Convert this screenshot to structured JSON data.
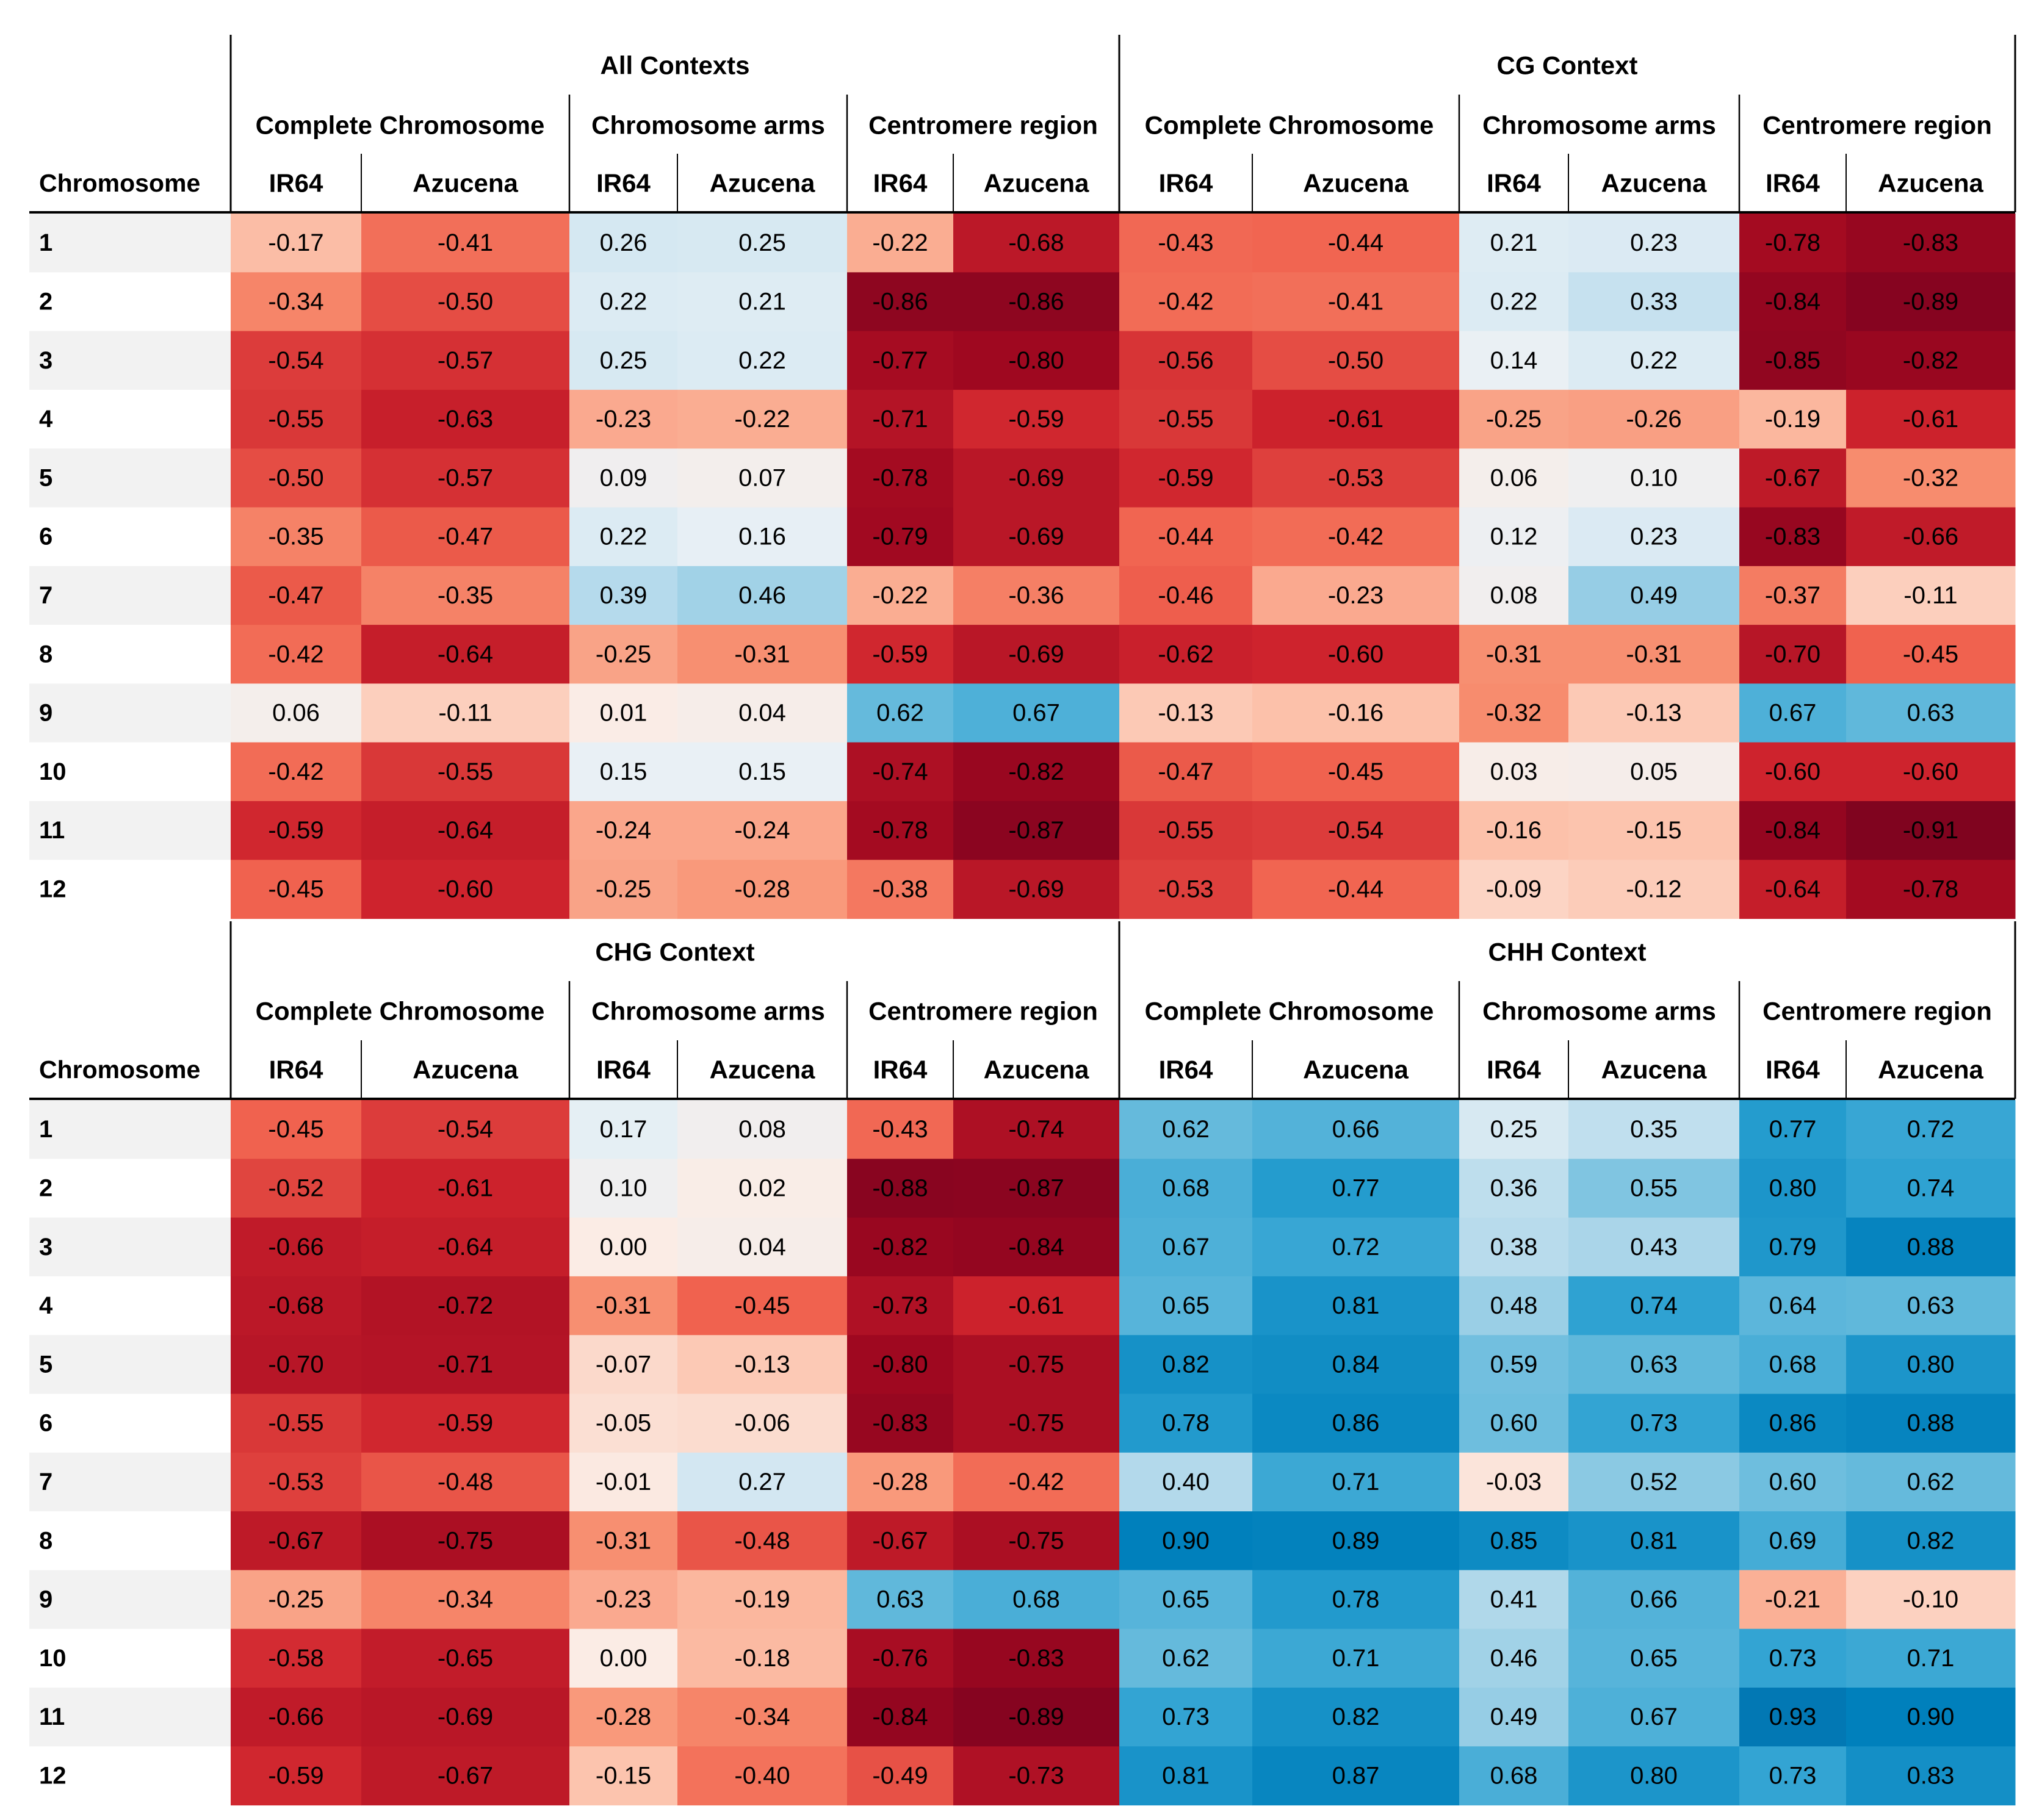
{
  "chart_data": [
    {
      "type": "heatmap",
      "row_header": "Chromosome",
      "rows": [
        "1",
        "2",
        "3",
        "4",
        "5",
        "6",
        "7",
        "8",
        "9",
        "10",
        "11",
        "12"
      ],
      "contexts": [
        {
          "name": "All Contexts",
          "regions": [
            {
              "name": "Complete Chromosome",
              "cols": [
                "IR64",
                "Azucena"
              ]
            },
            {
              "name": "Chromosome arms",
              "cols": [
                "IR64",
                "Azucena"
              ]
            },
            {
              "name": "Centromere region",
              "cols": [
                "IR64",
                "Azucena"
              ]
            }
          ]
        },
        {
          "name": "CG Context",
          "regions": [
            {
              "name": "Complete Chromosome",
              "cols": [
                "IR64",
                "Azucena"
              ]
            },
            {
              "name": "Chromosome arms",
              "cols": [
                "IR64",
                "Azucena"
              ]
            },
            {
              "name": "Centromere region",
              "cols": [
                "IR64",
                "Azucena"
              ]
            }
          ]
        }
      ],
      "values": [
        [
          "-0.17",
          "-0.41",
          "0.26",
          "0.25",
          "-0.22",
          "-0.68",
          "-0.43",
          "-0.44",
          "0.21",
          "0.23",
          "-0.78",
          "-0.83"
        ],
        [
          "-0.34",
          "-0.50",
          "0.22",
          "0.21",
          "-0.86",
          "-0.86",
          "-0.42",
          "-0.41",
          "0.22",
          "0.33",
          "-0.84",
          "-0.89"
        ],
        [
          "-0.54",
          "-0.57",
          "0.25",
          "0.22",
          "-0.77",
          "-0.80",
          "-0.56",
          "-0.50",
          "0.14",
          "0.22",
          "-0.85",
          "-0.82"
        ],
        [
          "-0.55",
          "-0.63",
          "-0.23",
          "-0.22",
          "-0.71",
          "-0.59",
          "-0.55",
          "-0.61",
          "-0.25",
          "-0.26",
          "-0.19",
          "-0.61"
        ],
        [
          "-0.50",
          "-0.57",
          "0.09",
          "0.07",
          "-0.78",
          "-0.69",
          "-0.59",
          "-0.53",
          "0.06",
          "0.10",
          "-0.67",
          "-0.32"
        ],
        [
          "-0.35",
          "-0.47",
          "0.22",
          "0.16",
          "-0.79",
          "-0.69",
          "-0.44",
          "-0.42",
          "0.12",
          "0.23",
          "-0.83",
          "-0.66"
        ],
        [
          "-0.47",
          "-0.35",
          "0.39",
          "0.46",
          "-0.22",
          "-0.36",
          "-0.46",
          "-0.23",
          "0.08",
          "0.49",
          "-0.37",
          "-0.11"
        ],
        [
          "-0.42",
          "-0.64",
          "-0.25",
          "-0.31",
          "-0.59",
          "-0.69",
          "-0.62",
          "-0.60",
          "-0.31",
          "-0.31",
          "-0.70",
          "-0.45"
        ],
        [
          "0.06",
          "-0.11",
          "0.01",
          "0.04",
          "0.62",
          "0.67",
          "-0.13",
          "-0.16",
          "-0.32",
          "-0.13",
          "0.67",
          "0.63"
        ],
        [
          "-0.42",
          "-0.55",
          "0.15",
          "0.15",
          "-0.74",
          "-0.82",
          "-0.47",
          "-0.45",
          "0.03",
          "0.05",
          "-0.60",
          "-0.60"
        ],
        [
          "-0.59",
          "-0.64",
          "-0.24",
          "-0.24",
          "-0.78",
          "-0.87",
          "-0.55",
          "-0.54",
          "-0.16",
          "-0.15",
          "-0.84",
          "-0.91"
        ],
        [
          "-0.45",
          "-0.60",
          "-0.25",
          "-0.28",
          "-0.38",
          "-0.69",
          "-0.53",
          "-0.44",
          "-0.09",
          "-0.12",
          "-0.64",
          "-0.78"
        ]
      ]
    },
    {
      "type": "heatmap",
      "row_header": "Chromosome",
      "rows": [
        "1",
        "2",
        "3",
        "4",
        "5",
        "6",
        "7",
        "8",
        "9",
        "10",
        "11",
        "12"
      ],
      "contexts": [
        {
          "name": "CHG Context",
          "regions": [
            {
              "name": "Complete Chromosome",
              "cols": [
                "IR64",
                "Azucena"
              ]
            },
            {
              "name": "Chromosome arms",
              "cols": [
                "IR64",
                "Azucena"
              ]
            },
            {
              "name": "Centromere region",
              "cols": [
                "IR64",
                "Azucena"
              ]
            }
          ]
        },
        {
          "name": "CHH Context",
          "regions": [
            {
              "name": "Complete Chromosome",
              "cols": [
                "IR64",
                "Azucena"
              ]
            },
            {
              "name": "Chromosome arms",
              "cols": [
                "IR64",
                "Azucena"
              ]
            },
            {
              "name": "Centromere region",
              "cols": [
                "IR64",
                "Azucena"
              ]
            }
          ]
        }
      ],
      "values": [
        [
          "-0.45",
          "-0.54",
          "0.17",
          "0.08",
          "-0.43",
          "-0.74",
          "0.62",
          "0.66",
          "0.25",
          "0.35",
          "0.77",
          "0.72"
        ],
        [
          "-0.52",
          "-0.61",
          "0.10",
          "0.02",
          "-0.88",
          "-0.87",
          "0.68",
          "0.77",
          "0.36",
          "0.55",
          "0.80",
          "0.74"
        ],
        [
          "-0.66",
          "-0.64",
          "0.00",
          "0.04",
          "-0.82",
          "-0.84",
          "0.67",
          "0.72",
          "0.38",
          "0.43",
          "0.79",
          "0.88"
        ],
        [
          "-0.68",
          "-0.72",
          "-0.31",
          "-0.45",
          "-0.73",
          "-0.61",
          "0.65",
          "0.81",
          "0.48",
          "0.74",
          "0.64",
          "0.63"
        ],
        [
          "-0.70",
          "-0.71",
          "-0.07",
          "-0.13",
          "-0.80",
          "-0.75",
          "0.82",
          "0.84",
          "0.59",
          "0.63",
          "0.68",
          "0.80"
        ],
        [
          "-0.55",
          "-0.59",
          "-0.05",
          "-0.06",
          "-0.83",
          "-0.75",
          "0.78",
          "0.86",
          "0.60",
          "0.73",
          "0.86",
          "0.88"
        ],
        [
          "-0.53",
          "-0.48",
          "-0.01",
          "0.27",
          "-0.28",
          "-0.42",
          "0.40",
          "0.71",
          "-0.03",
          "0.52",
          "0.60",
          "0.62"
        ],
        [
          "-0.67",
          "-0.75",
          "-0.31",
          "-0.48",
          "-0.67",
          "-0.75",
          "0.90",
          "0.89",
          "0.85",
          "0.81",
          "0.69",
          "0.82"
        ],
        [
          "-0.25",
          "-0.34",
          "-0.23",
          "-0.19",
          "0.63",
          "0.68",
          "0.65",
          "0.78",
          "0.41",
          "0.66",
          "-0.21",
          "-0.10"
        ],
        [
          "-0.58",
          "-0.65",
          "0.00",
          "-0.18",
          "-0.76",
          "-0.83",
          "0.62",
          "0.71",
          "0.46",
          "0.65",
          "0.73",
          "0.71"
        ],
        [
          "-0.66",
          "-0.69",
          "-0.28",
          "-0.34",
          "-0.84",
          "-0.89",
          "0.73",
          "0.82",
          "0.49",
          "0.67",
          "0.93",
          "0.90"
        ],
        [
          "-0.59",
          "-0.67",
          "-0.15",
          "-0.40",
          "-0.49",
          "-0.73",
          "0.81",
          "0.87",
          "0.68",
          "0.80",
          "0.73",
          "0.83"
        ]
      ]
    }
  ],
  "colors": {
    "scale_negative_max": "#67001f",
    "scale_negative_mid": "#d6604d",
    "scale_neutral": "#f7f7f7",
    "scale_positive_mid": "#4393c3",
    "scale_positive_max": "#0571b0",
    "row_stripe": "#f2f2f2",
    "rule": "#000000"
  }
}
